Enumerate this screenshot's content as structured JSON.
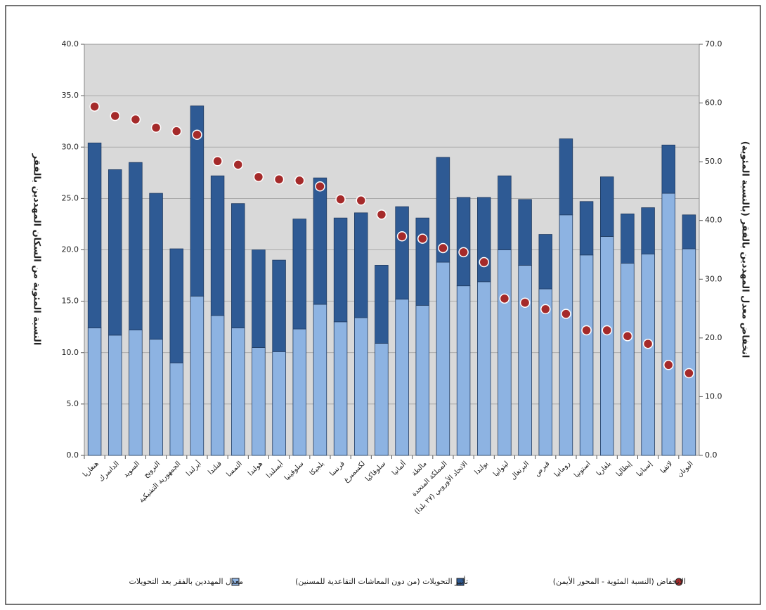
{
  "chart_data": {
    "type": "bar",
    "stacked": true,
    "categories": [
      "هنغاريا",
      "الدانمرك",
      "السويد",
      "النرويج",
      "الجمهورية التشيكية",
      "أيرلندا",
      "فنلندا",
      "النمسا",
      "هولندا",
      "أيسلندا",
      "سلوفينيا",
      "بلجيكا",
      "فرنسا",
      "لكسمبرغ",
      "سلوفاكيا",
      "ألمانيا",
      "مالطة",
      "المملكة المتحدة",
      "الاتحاد الأوروبي (٢٧ بلدا)",
      "بولندا",
      "ليتوانيا",
      "البرتغال",
      "قبرص",
      "رومانيا",
      "استونيا",
      "بلغاريا",
      "إيطاليا",
      "إسبانيا",
      "لاتفيا",
      "اليونان"
    ],
    "series": [
      {
        "name": "معدل المهددين بالفقر بعد التحويلات",
        "color": "#8db3e2",
        "values": [
          12.4,
          11.7,
          12.2,
          11.3,
          9.0,
          15.5,
          13.6,
          12.4,
          10.5,
          10.1,
          12.3,
          14.7,
          13.0,
          13.4,
          10.9,
          15.2,
          14.6,
          18.8,
          16.5,
          16.9,
          20.0,
          18.5,
          16.2,
          23.4,
          19.5,
          21.3,
          18.7,
          19.6,
          25.5,
          20.1
        ]
      },
      {
        "name": "تأثير التحويلات (من دون المعاشات التقاعدية للمسنين)",
        "color": "#2e5a94",
        "values": [
          18.0,
          16.1,
          16.3,
          14.2,
          11.1,
          18.5,
          13.6,
          12.1,
          9.5,
          8.9,
          10.7,
          12.3,
          10.1,
          10.2,
          7.6,
          9.0,
          8.5,
          10.2,
          8.6,
          8.2,
          7.2,
          6.4,
          5.3,
          7.4,
          5.2,
          5.8,
          4.8,
          4.5,
          4.7,
          3.3
        ]
      },
      {
        "name": "الانخفاض (النسبة المئوية - المحور الأيمن)",
        "color": "#a52a2a",
        "axis": "y2",
        "values": [
          59.4,
          57.8,
          57.2,
          55.8,
          55.2,
          54.6,
          50.1,
          49.5,
          47.4,
          47.0,
          46.8,
          45.8,
          43.6,
          43.4,
          41.0,
          37.3,
          36.9,
          35.3,
          34.6,
          32.9,
          26.7,
          26.0,
          24.9,
          24.1,
          21.3,
          21.3,
          20.3,
          19.0,
          15.4,
          14.0
        ]
      }
    ],
    "ylabel": "النسبة المئوية من السكان المهددين بالفقر",
    "y2label": "انخفاض معدل المهددين بالفقر (بالنسبة المئوية)",
    "ylim": [
      0,
      40
    ],
    "yticks": [
      {
        "value": 0,
        "label": "0.0"
      },
      {
        "value": 5,
        "label": "5.0"
      },
      {
        "value": 10,
        "label": "10.0"
      },
      {
        "value": 15,
        "label": "15.0"
      },
      {
        "value": 20,
        "label": "20.0"
      },
      {
        "value": 25,
        "label": "25.0"
      },
      {
        "value": 30,
        "label": "30.0"
      },
      {
        "value": 35,
        "label": "35.0"
      },
      {
        "value": 40,
        "label": "40.0"
      }
    ],
    "y2lim": [
      0,
      70
    ],
    "y2ticks": [
      {
        "value": 0,
        "label": "0.0"
      },
      {
        "value": 10,
        "label": "10.0"
      },
      {
        "value": 20,
        "label": "20.0"
      },
      {
        "value": 30,
        "label": "30.0"
      },
      {
        "value": 40,
        "label": "40.0"
      },
      {
        "value": 50,
        "label": "50.0"
      },
      {
        "value": 60,
        "label": "60.0"
      },
      {
        "value": 70,
        "label": "70.0"
      }
    ],
    "grid": true
  }
}
